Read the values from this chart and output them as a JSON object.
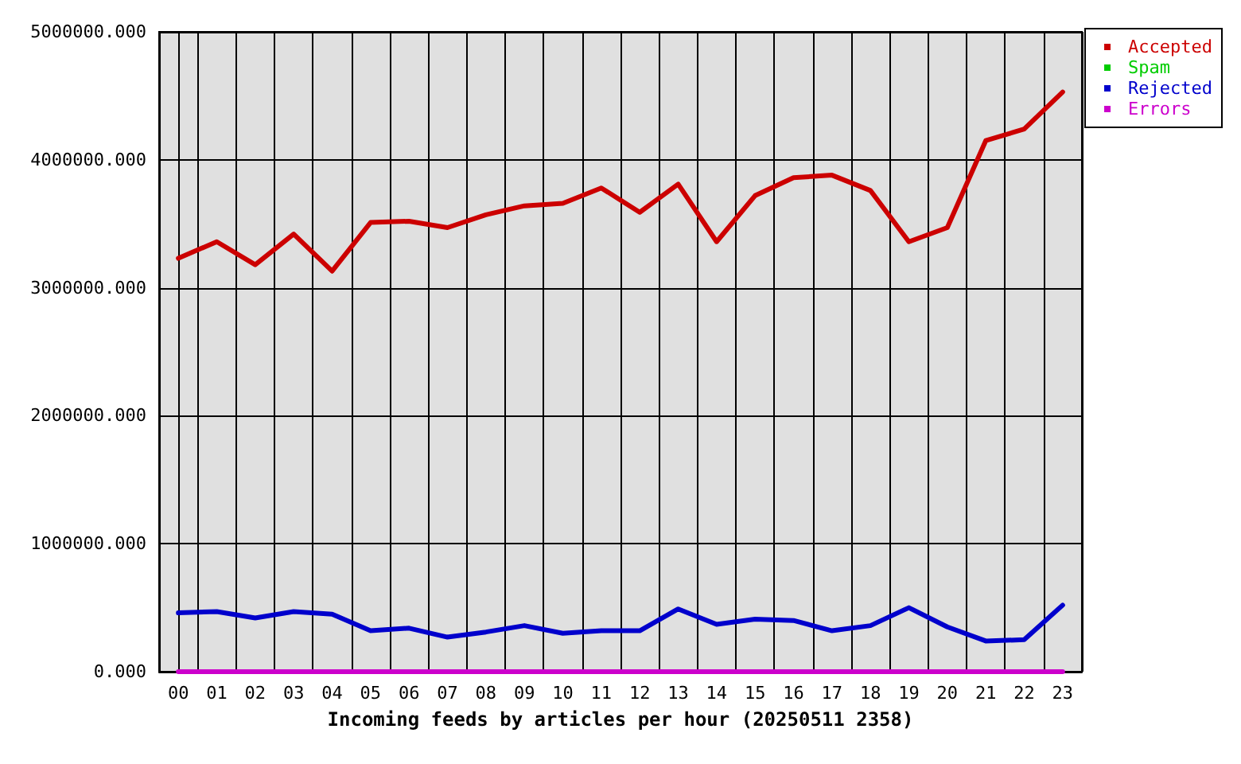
{
  "chart_data": {
    "type": "line",
    "xlabel": "Incoming feeds by articles per hour (20250511 2358)",
    "categories": [
      "00",
      "01",
      "02",
      "03",
      "04",
      "05",
      "06",
      "07",
      "08",
      "09",
      "10",
      "11",
      "12",
      "13",
      "14",
      "15",
      "16",
      "17",
      "18",
      "19",
      "20",
      "21",
      "22",
      "23"
    ],
    "series": [
      {
        "name": "Accepted",
        "color": "#cc0000",
        "values": [
          3230000,
          3360000,
          3180000,
          3420000,
          3130000,
          3510000,
          3520000,
          3470000,
          3570000,
          3640000,
          3660000,
          3780000,
          3590000,
          3810000,
          3360000,
          3720000,
          3860000,
          3880000,
          3760000,
          3360000,
          3470000,
          4150000,
          4240000,
          4530000
        ]
      },
      {
        "name": "Spam",
        "color": "#00cc00",
        "values": [
          null,
          null,
          null,
          null,
          null,
          null,
          null,
          null,
          null,
          null,
          null,
          null,
          null,
          null,
          null,
          null,
          null,
          null,
          null,
          null,
          null,
          null,
          null,
          null
        ]
      },
      {
        "name": "Rejected",
        "color": "#0000cc",
        "values": [
          460000,
          470000,
          420000,
          470000,
          450000,
          320000,
          340000,
          270000,
          310000,
          360000,
          300000,
          320000,
          320000,
          490000,
          370000,
          410000,
          400000,
          320000,
          360000,
          500000,
          350000,
          240000,
          250000,
          520000
        ]
      },
      {
        "name": "Errors",
        "color": "#cc00cc",
        "values": [
          0,
          0,
          0,
          0,
          0,
          0,
          0,
          0,
          0,
          0,
          0,
          0,
          0,
          0,
          0,
          0,
          0,
          0,
          0,
          0,
          0,
          0,
          0,
          0
        ]
      }
    ],
    "ylim": [
      0,
      5000000
    ],
    "yticks": [
      {
        "value": 0,
        "label": "0.000"
      },
      {
        "value": 1000000,
        "label": "1000000.000"
      },
      {
        "value": 2000000,
        "label": "2000000.000"
      },
      {
        "value": 3000000,
        "label": "3000000.000"
      },
      {
        "value": 4000000,
        "label": "4000000.000"
      },
      {
        "value": 5000000,
        "label": "5000000.000"
      }
    ],
    "grid": true,
    "legend": "top right",
    "marker": "none",
    "line_style": "solid"
  }
}
